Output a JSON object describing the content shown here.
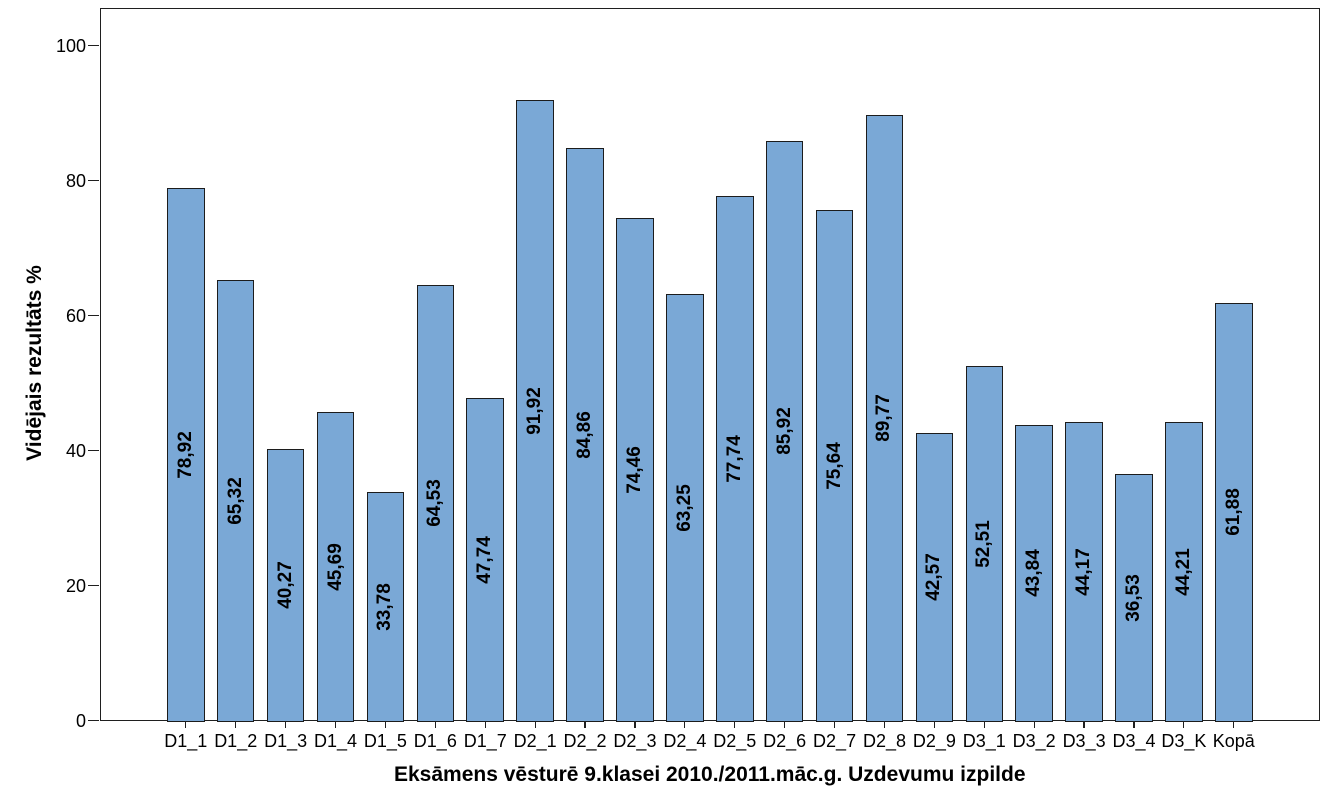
{
  "chart_data": {
    "type": "bar",
    "title": "",
    "xlabel": "Eksāmens vēsturē 9.klasei 2010./2011.māc.g. Uzdevumu izpilde",
    "ylabel": "Vidējais rezultāts %",
    "categories": [
      "D1_1",
      "D1_2",
      "D1_3",
      "D1_4",
      "D1_5",
      "D1_6",
      "D1_7",
      "D2_1",
      "D2_2",
      "D2_3",
      "D2_4",
      "D2_5",
      "D2_6",
      "D2_7",
      "D2_8",
      "D2_9",
      "D3_1",
      "D3_2",
      "D3_3",
      "D3_4",
      "D3_K",
      "Kopā"
    ],
    "values": [
      78.92,
      65.32,
      40.27,
      45.69,
      33.78,
      64.53,
      47.74,
      91.92,
      84.86,
      74.46,
      63.25,
      77.74,
      85.92,
      75.64,
      89.77,
      42.57,
      52.51,
      43.84,
      44.17,
      36.53,
      44.21,
      61.88
    ],
    "value_labels": [
      "78,92",
      "65,32",
      "40,27",
      "45,69",
      "33,78",
      "64,53",
      "47,74",
      "91,92",
      "84,86",
      "74,46",
      "63,25",
      "77,74",
      "85,92",
      "75,64",
      "89,77",
      "42,57",
      "52,51",
      "43,84",
      "44,17",
      "36,53",
      "44,21",
      "61,88"
    ],
    "yticks": [
      0,
      20,
      40,
      60,
      80,
      100
    ],
    "ylim": [
      0,
      105.6
    ],
    "grid": false,
    "legend": null,
    "colors": {
      "bar_fill": "#7aa8d6",
      "bar_border": "#1c1c1c",
      "axis": "#1f1f1f",
      "text": "#000000",
      "background": "#ffffff"
    }
  }
}
